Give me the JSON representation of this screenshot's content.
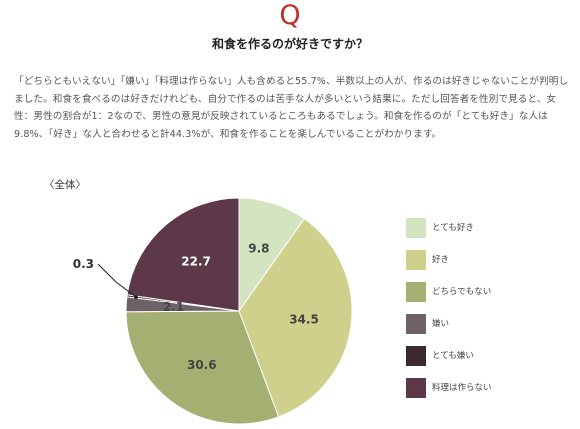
{
  "header": {
    "q_letter": "Q",
    "question": "和食を作るのが好きですか？"
  },
  "body_text": "「どちらともいえない」「嫌い」「料理は作らない」人も含めると55.7%、半数以上の人が、作るのは好きじゃないことが判明しました。和食を食べるのは好きだけれども、自分で作るのは苦手な人が多いという結果に。ただし回答者を性別で見ると、女性：男性の割合が1：2なので、男性の意見が反映されているところもあるでしょう。和食を作るのが「とても好き」な人は9.8%、「好き」な人と合わせると計44.3%が、和食を作ることを楽しんでいることがわかります。",
  "section_label": "〈全体〉",
  "chart_data": {
    "type": "pie",
    "title": "",
    "categories": [
      "とても好き",
      "好き",
      "どちらでもない",
      "嫌い",
      "とても嫌い",
      "料理は作らない"
    ],
    "values": [
      9.8,
      34.5,
      30.6,
      2.1,
      0.3,
      22.7
    ],
    "value_labels": [
      "9.8",
      "34.5",
      "30.6",
      "2.1",
      "0.3",
      "22.7"
    ],
    "colors": [
      "#d4e4c0",
      "#cfd08c",
      "#a4b072",
      "#6e6267",
      "#3c2a2e",
      "#5c3848"
    ],
    "label_colors": [
      "#444444",
      "#444444",
      "#444444",
      "#444444",
      "#444444",
      "#ffffff"
    ],
    "start_angle_deg": 0,
    "direction": "clockwise",
    "legend_position": "right"
  }
}
